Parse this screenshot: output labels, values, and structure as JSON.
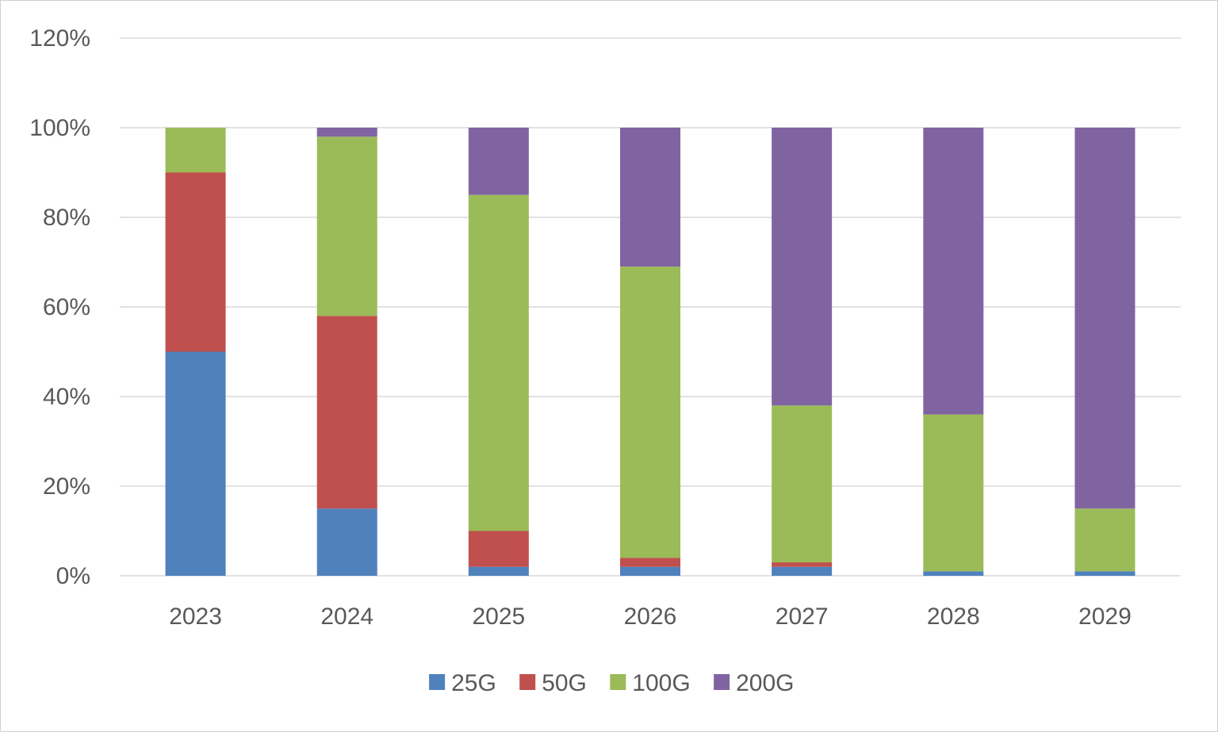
{
  "chart_data": {
    "type": "bar",
    "stacked": true,
    "title": "",
    "xlabel": "",
    "ylabel": "",
    "categories": [
      "2023",
      "2024",
      "2025",
      "2026",
      "2027",
      "2028",
      "2029"
    ],
    "series": [
      {
        "name": "25G",
        "color": "#4f81bd",
        "values": [
          50,
          15,
          2,
          2,
          2,
          1,
          1
        ]
      },
      {
        "name": "50G",
        "color": "#c0504d",
        "values": [
          40,
          43,
          8,
          2,
          1,
          0,
          0
        ]
      },
      {
        "name": "100G",
        "color": "#9bbb59",
        "values": [
          10,
          40,
          75,
          65,
          35,
          35,
          14
        ]
      },
      {
        "name": "200G",
        "color": "#8064a2",
        "values": [
          0,
          2,
          15,
          31,
          62,
          64,
          85
        ]
      }
    ],
    "ylim": [
      0,
      120
    ],
    "yticks": [
      0,
      20,
      40,
      60,
      80,
      100,
      120
    ],
    "ytick_labels": [
      "0%",
      "20%",
      "40%",
      "60%",
      "80%",
      "100%",
      "120%"
    ],
    "grid": true,
    "legend": "bottom-center"
  }
}
